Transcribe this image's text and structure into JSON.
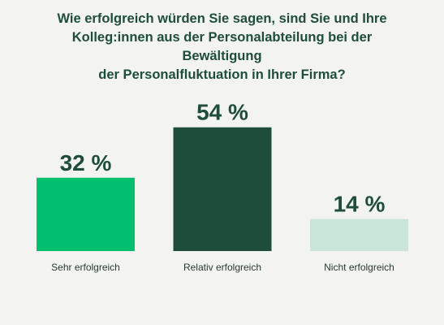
{
  "title_lines": [
    "Wie erfolgreich würden Sie sagen, sind Sie und Ihre",
    "Kolleg:innen aus der Personalabteilung bei der Bewältigung",
    "der Personalfluktuation in Ihrer Firma?"
  ],
  "chart_data": {
    "type": "bar",
    "title": "Wie erfolgreich würden Sie sagen, sind Sie und Ihre Kolleg:innen aus der Personalabteilung bei der Bewältigung der Personalfluktuation in Ihrer Firma?",
    "categories": [
      "Sehr erfolgreich",
      "Relativ erfolgreich",
      "Nicht erfolgreich"
    ],
    "values": [
      32,
      54,
      14
    ],
    "value_labels": [
      "32 %",
      "54 %",
      "14 %"
    ],
    "unit": "%",
    "colors": [
      "#00bf6f",
      "#1f4d3b",
      "#c9e6d8"
    ],
    "ylim": [
      0,
      100
    ],
    "grid": false,
    "legend": "none"
  }
}
